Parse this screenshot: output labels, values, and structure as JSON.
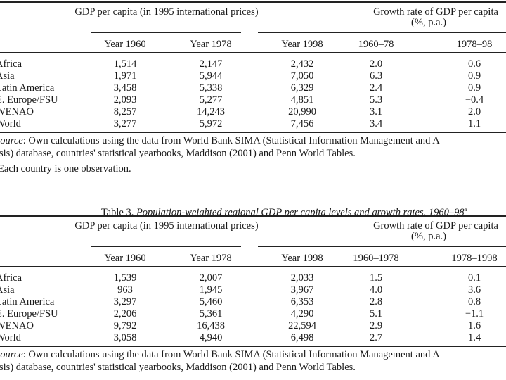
{
  "tables": [
    {
      "caption_label": "",
      "caption_title": "",
      "group_headers": {
        "gdp": "GDP per capita (in 1995 international prices)",
        "growth_line1": "Growth rate of GDP per capita",
        "growth_line2": "(%, p.a.)"
      },
      "columns": [
        "Year 1960",
        "Year 1978",
        "Year 1998",
        "1960–78",
        "1978–98"
      ],
      "rows": [
        {
          "region": "Africa",
          "values": [
            "1,514",
            "2,147",
            "2,432",
            "2.0",
            "0.6"
          ]
        },
        {
          "region": "Asia",
          "values": [
            "1,971",
            "5,944",
            "7,050",
            "6.3",
            "0.9"
          ]
        },
        {
          "region": "Latin America",
          "values": [
            "3,458",
            "5,338",
            "6,329",
            "2.4",
            "0.9"
          ]
        },
        {
          "region": "E. Europe/FSU",
          "values": [
            "2,093",
            "5,277",
            "4,851",
            "5.3",
            "−0.4"
          ]
        },
        {
          "region": "WENAO",
          "values": [
            "8,257",
            "14,243",
            "20,990",
            "3.1",
            "2.0"
          ]
        },
        {
          "region": "World",
          "values": [
            "3,277",
            "5,972",
            "7,456",
            "3.4",
            "1.1"
          ]
        }
      ],
      "source_label": "Source",
      "source_line1": ": Own calculations using the data from World Bank SIMA (Statistical Information Management and A",
      "source_line2": "sis) database, countries' statistical yearbooks, Maddison (2001) and Penn World Tables.",
      "footnote": "Each country is one observation."
    },
    {
      "caption_label": "Table 3.",
      "caption_title": "Population-weighted regional GDP per capita levels and growth rates, 1960–98",
      "caption_sup": "a",
      "group_headers": {
        "gdp": "GDP per capita (in 1995 international prices)",
        "growth_line1": "Growth rate of GDP per capita",
        "growth_line2": "(%, p.a.)"
      },
      "columns": [
        "Year 1960",
        "Year 1978",
        "Year 1998",
        "1960–1978",
        "1978–1998"
      ],
      "rows": [
        {
          "region": "Africa",
          "values": [
            "1,539",
            "2,007",
            "2,033",
            "1.5",
            "0.1"
          ]
        },
        {
          "region": "Asia",
          "values": [
            "963",
            "1,945",
            "3,967",
            "4.0",
            "3.6"
          ]
        },
        {
          "region": "Latin America",
          "values": [
            "3,297",
            "5,460",
            "6,353",
            "2.8",
            "0.8"
          ]
        },
        {
          "region": "E. Europe/FSU",
          "values": [
            "2,206",
            "5,361",
            "4,290",
            "5.1",
            "−1.1"
          ]
        },
        {
          "region": "WENAO",
          "values": [
            "9,792",
            "16,438",
            "22,594",
            "2.9",
            "1.6"
          ]
        },
        {
          "region": "World",
          "values": [
            "3,058",
            "4,940",
            "6,498",
            "2.7",
            "1.4"
          ]
        }
      ],
      "source_label": "Source",
      "source_line1": ": Own calculations using the data from World Bank SIMA (Statistical Information Management and A",
      "source_line2": "sis) database, countries' statistical yearbooks, Maddison (2001) and Penn World Tables."
    }
  ]
}
